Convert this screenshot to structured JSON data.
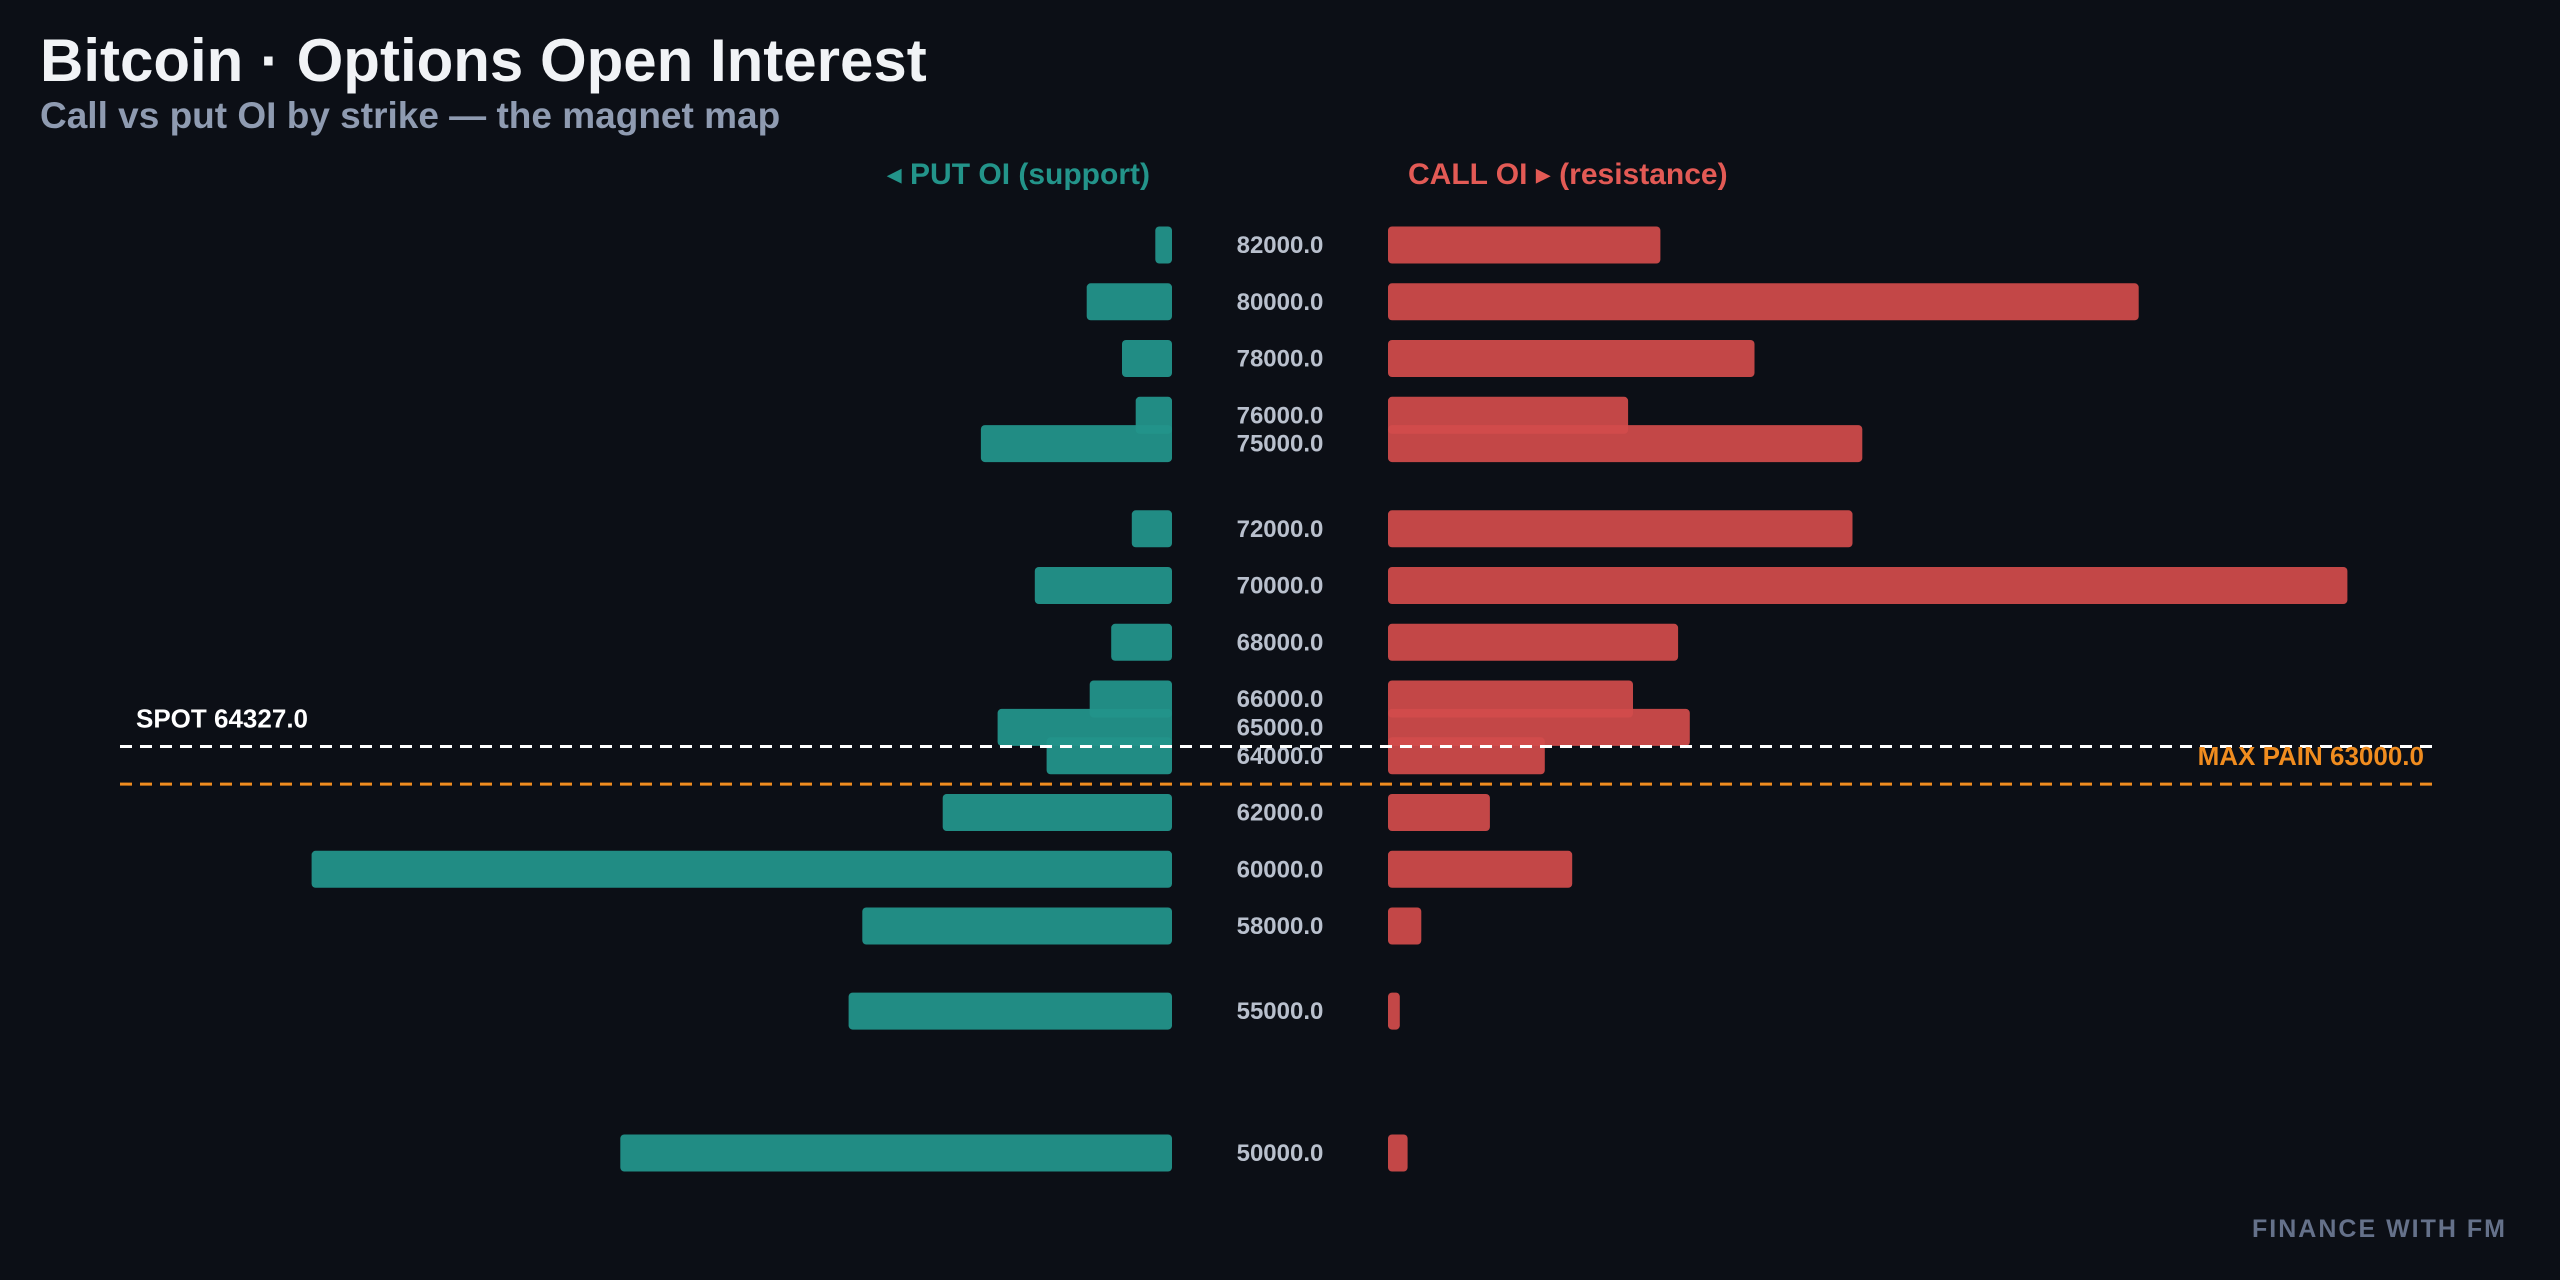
{
  "title": "Bitcoin · Options Open Interest",
  "subtitle": "Call vs put OI by strike — the magnet map",
  "watermark": "FINANCE WITH FM",
  "colors": {
    "background": "#0c0f16",
    "put": "#23948a",
    "call": "#d24b4b",
    "spot_line": "#ffffff",
    "max_pain": "#f08c1f",
    "strike_text": "#b9c0cd",
    "subtitle": "#8f9bb1"
  },
  "chart_data": {
    "type": "bar",
    "orientation": "horizontal-butterfly",
    "put_header": "◂ PUT OI (support)",
    "call_header": "CALL OI ▸ (resistance)",
    "strikes": [
      82000,
      80000,
      78000,
      76000,
      75000,
      72000,
      70000,
      68000,
      66000,
      65000,
      64000,
      62000,
      60000,
      58000,
      55000,
      50000
    ],
    "strike_labels": [
      "82000.0",
      "80000.0",
      "78000.0",
      "76000.0",
      "75000.0",
      "72000.0",
      "70000.0",
      "68000.0",
      "66000.0",
      "65000.0",
      "64000.0",
      "62000.0",
      "60000.0",
      "58000.0",
      "55000.0",
      "50000.0"
    ],
    "put_oi": [
      17,
      87,
      51,
      37,
      195,
      41,
      140,
      62,
      84,
      178,
      128,
      234,
      878,
      316,
      330,
      563
    ],
    "call_oi": [
      278,
      766,
      374,
      245,
      484,
      474,
      979,
      296,
      250,
      308,
      160,
      104,
      188,
      34,
      12,
      20
    ],
    "spot": 64327,
    "spot_label": "SPOT 64327.0",
    "max_pain": 63000,
    "max_pain_label": "MAX PAIN 63000.0",
    "y_range": [
      49000,
      83500
    ],
    "grid": false,
    "legend": "none"
  }
}
